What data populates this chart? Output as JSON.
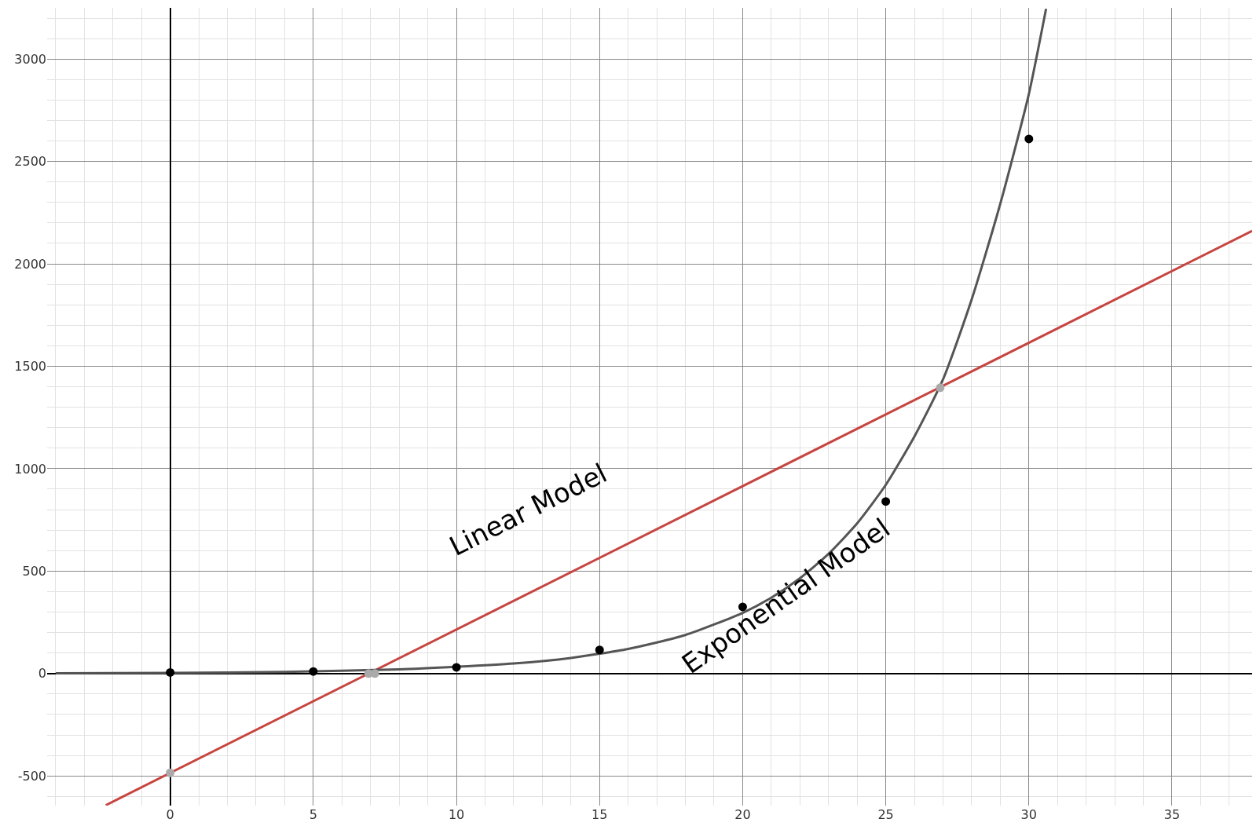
{
  "chart_data": {
    "type": "line",
    "xlim": [
      -4.3,
      37.8
    ],
    "ylim": [
      -645,
      3250
    ],
    "xticks": [
      0,
      5,
      10,
      15,
      20,
      25,
      30,
      35
    ],
    "yticks": [
      -500,
      0,
      500,
      1000,
      1500,
      2000,
      2500,
      3000
    ],
    "grid": true,
    "series": [
      {
        "color": "#c74440",
        "marker": "none",
        "x": [
          -2.25,
          37.8
        ],
        "values": [
          -643,
          2161
        ]
      },
      {
        "color": "#555555",
        "marker": "none",
        "x": [
          -4,
          0,
          4,
          8,
          12,
          14,
          16,
          18,
          20,
          21,
          22,
          23,
          24,
          25,
          26,
          27,
          28,
          29,
          30,
          30.6
        ],
        "values": [
          1,
          3,
          8,
          20,
          49,
          76,
          120,
          188,
          296,
          370,
          465,
          584,
          733,
          921,
          1157,
          1436,
          1826,
          2293,
          2830,
          3245
        ]
      },
      {
        "type": "scatter",
        "marker": "circle",
        "color": "#000000",
        "x": [
          0,
          5,
          10,
          15,
          20,
          25,
          30
        ],
        "values": [
          5,
          10,
          30,
          115,
          325,
          840,
          2610
        ]
      },
      {
        "type": "scatter",
        "marker": "circle",
        "color": "#aaaaaa",
        "x": [
          0,
          6.93,
          7.15,
          26.9
        ],
        "values": [
          -485,
          0,
          0,
          1395
        ]
      }
    ],
    "annotations": [
      "Linear Model",
      "Exponential Model"
    ]
  }
}
